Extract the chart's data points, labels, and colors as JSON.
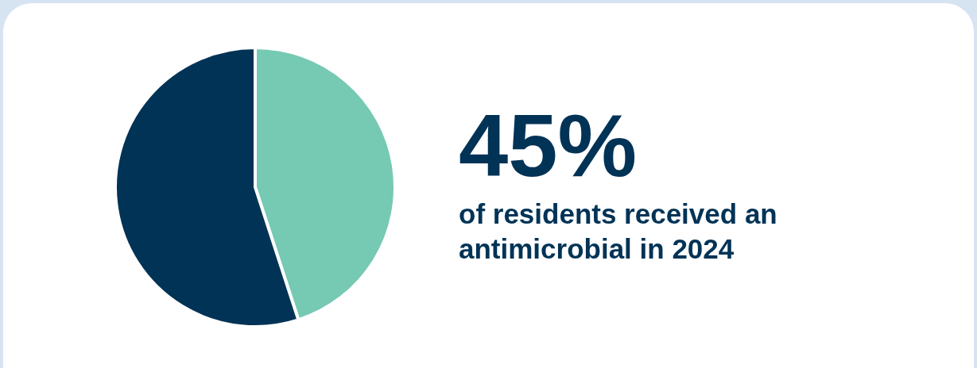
{
  "chart_data": {
    "type": "pie",
    "title": "45%",
    "subtitle": "of residents received an antimicrobial in 2024",
    "categories": [
      null,
      null
    ],
    "values": [
      45,
      55
    ],
    "colors": [
      "#76c9b3",
      "#003356"
    ]
  }
}
